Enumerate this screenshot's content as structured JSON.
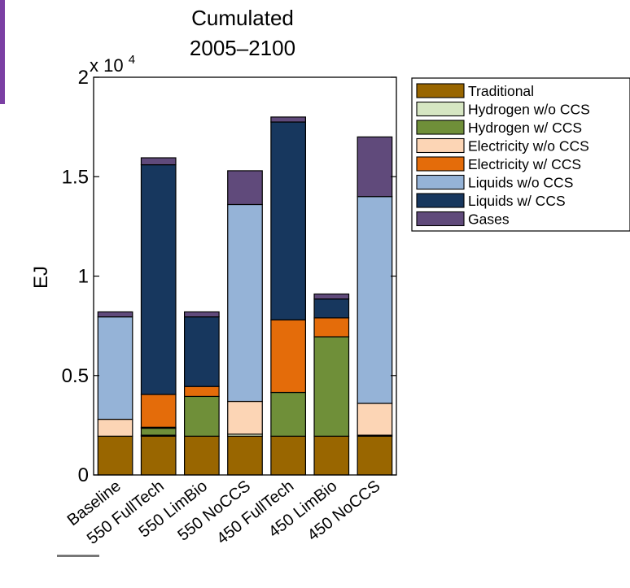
{
  "decor": {
    "accent_color": "#7b3fa3"
  },
  "chart_data": {
    "type": "bar",
    "stacked": true,
    "title": [
      "Cumulated",
      "2005–2100"
    ],
    "xlabel": "",
    "ylabel": "EJ",
    "y_multiplier_label": {
      "base": "x 10",
      "exponent": "4"
    },
    "ylim": [
      0,
      2
    ],
    "yticks": [
      0,
      0.5,
      1,
      1.5,
      2
    ],
    "ytick_labels": [
      "0",
      "0.5",
      "1",
      "1.5",
      "2"
    ],
    "grid": false,
    "legend_position": "outside-right-top",
    "categories": [
      "Baseline",
      "550 FullTech",
      "550 LimBio",
      "550 NoCCS",
      "450 FullTech",
      "450 LimBio",
      "450 NoCCS"
    ],
    "series": [
      {
        "name": "Traditional",
        "color": "#996600",
        "values": [
          0.195,
          0.195,
          0.195,
          0.195,
          0.195,
          0.195,
          0.195
        ]
      },
      {
        "name": "Hydrogen w/o CCS",
        "color": "#d6e6c2",
        "values": [
          0,
          0.005,
          0,
          0.01,
          0,
          0,
          0.005
        ]
      },
      {
        "name": "Hydrogen w/ CCS",
        "color": "#6f8f39",
        "values": [
          0,
          0.035,
          0.2,
          0,
          0.22,
          0.5,
          0
        ]
      },
      {
        "name": "Electricity w/o CCS",
        "color": "#fcd5b5",
        "values": [
          0.085,
          0.005,
          0,
          0.165,
          0,
          0,
          0.16
        ]
      },
      {
        "name": "Electricity w/ CCS",
        "color": "#e46c0a",
        "values": [
          0,
          0.165,
          0.05,
          0,
          0.365,
          0.095,
          0
        ]
      },
      {
        "name": "Liquids w/o CCS",
        "color": "#95b3d7",
        "values": [
          0.515,
          0,
          0,
          0.99,
          0,
          0,
          1.04
        ]
      },
      {
        "name": "Liquids w/ CCS",
        "color": "#17375e",
        "values": [
          0,
          1.155,
          0.35,
          0,
          0.995,
          0.095,
          0
        ]
      },
      {
        "name": "Gases",
        "color": "#604a7b",
        "values": [
          0.025,
          0.035,
          0.025,
          0.17,
          0.025,
          0.025,
          0.3
        ]
      }
    ]
  }
}
